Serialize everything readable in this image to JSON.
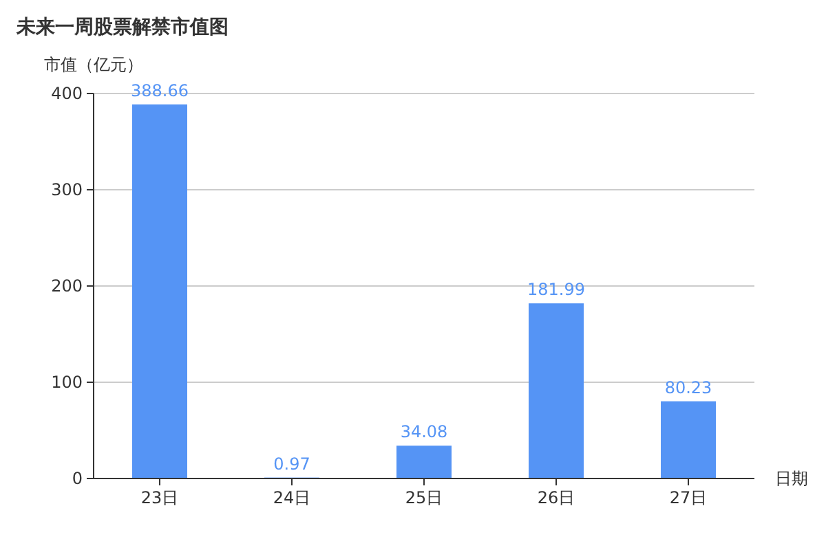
{
  "chart_data": {
    "type": "bar",
    "title": "未来一周股票解禁市值图",
    "ylabel": "市值（亿元）",
    "xlabel": "日期",
    "categories": [
      "23日",
      "24日",
      "25日",
      "26日",
      "27日"
    ],
    "values": [
      388.66,
      0.97,
      34.08,
      181.99,
      80.23
    ],
    "color": "#5594f5",
    "ylim": [
      0,
      400
    ],
    "yticks": [
      0,
      100,
      200,
      300,
      400
    ],
    "grid": "y",
    "data_labels": true
  }
}
